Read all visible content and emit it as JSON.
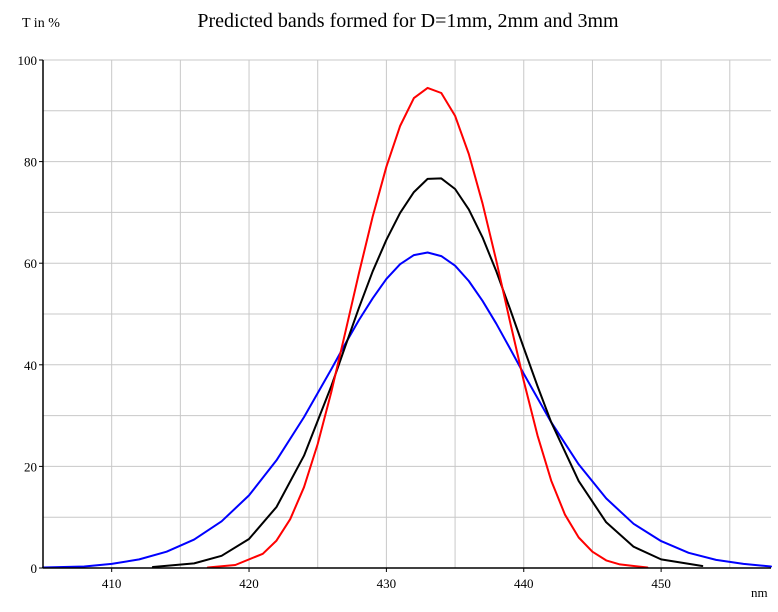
{
  "chart_data": {
    "type": "line",
    "title": "Predicted bands formed for D=1mm, 2mm and 3mm",
    "ylabel": "T in %",
    "xlabel": "nm",
    "xlim": [
      405,
      458
    ],
    "ylim": [
      0,
      100
    ],
    "x_ticks": [
      410,
      420,
      430,
      440,
      450
    ],
    "y_ticks": [
      0,
      20,
      40,
      60,
      80,
      100
    ],
    "grid": true,
    "colors": {
      "grid": "#c8c8c8",
      "axis": "#000000"
    },
    "series": [
      {
        "color": "#0000ff",
        "x": [
          405,
          408,
          410,
          412,
          414,
          416,
          418,
          420,
          422,
          424,
          426,
          427,
          428,
          429,
          430,
          431,
          432,
          433,
          434,
          435,
          436,
          437,
          438,
          439,
          440,
          442,
          444,
          446,
          448,
          450,
          452,
          454,
          456,
          458
        ],
        "y": [
          0.1,
          0.3,
          0.8,
          1.7,
          3.2,
          5.6,
          9.2,
          14.3,
          21.2,
          29.7,
          39.2,
          44.1,
          48.8,
          53.1,
          56.9,
          59.8,
          61.6,
          62.1,
          61.4,
          59.5,
          56.5,
          52.6,
          48.1,
          43.2,
          38.2,
          28.7,
          20.4,
          13.7,
          8.7,
          5.3,
          3.0,
          1.6,
          0.8,
          0.3
        ]
      },
      {
        "color": "#000000",
        "x": [
          413,
          416,
          418,
          420,
          422,
          424,
          426,
          427,
          428,
          429,
          430,
          431,
          432,
          433,
          434,
          435,
          436,
          437,
          438,
          439,
          440,
          441,
          442,
          444,
          446,
          448,
          450,
          453
        ],
        "y": [
          0.2,
          0.9,
          2.4,
          5.7,
          12.0,
          22.1,
          35.9,
          43.6,
          51.2,
          58.4,
          64.6,
          69.9,
          74.0,
          76.6,
          76.7,
          74.6,
          70.6,
          65.1,
          58.4,
          51.0,
          43.3,
          35.8,
          28.7,
          17.1,
          9.0,
          4.2,
          1.7,
          0.4
        ]
      },
      {
        "color": "#ff0000",
        "x": [
          417,
          419,
          421,
          422,
          423,
          424,
          425,
          426,
          427,
          428,
          429,
          430,
          431,
          432,
          433,
          434,
          435,
          436,
          437,
          438,
          439,
          440,
          441,
          442,
          443,
          444,
          445,
          446,
          447,
          449
        ],
        "y": [
          0.1,
          0.6,
          2.8,
          5.4,
          9.6,
          15.9,
          24.4,
          34.8,
          46.3,
          58.0,
          69.2,
          79.0,
          87.0,
          92.5,
          94.5,
          93.5,
          89.0,
          81.5,
          71.8,
          60.5,
          48.5,
          36.8,
          26.1,
          17.2,
          10.5,
          6.0,
          3.2,
          1.5,
          0.7,
          0.1
        ]
      }
    ]
  }
}
